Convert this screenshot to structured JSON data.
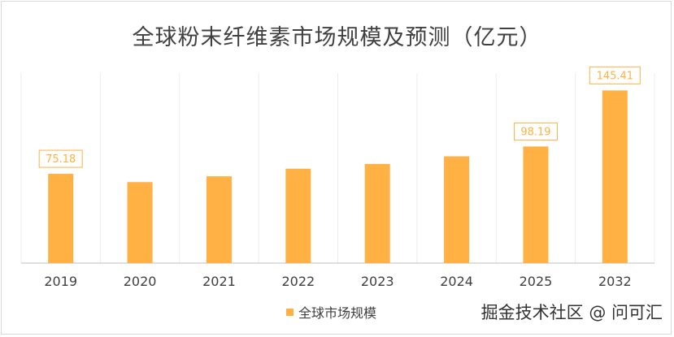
{
  "chart_data": {
    "type": "bar",
    "title": "全球粉末纤维素市场规模及预测（亿元）",
    "categories": [
      "2019",
      "2020",
      "2021",
      "2022",
      "2023",
      "2024",
      "2025",
      "2032"
    ],
    "series": [
      {
        "name": "全球市场规模",
        "values": [
          75.18,
          68.2,
          73.1,
          79.5,
          83.5,
          89.9,
          98.19,
          145.41
        ],
        "data_labels": [
          "75.18",
          "",
          "",
          "",
          "",
          "",
          "98.19",
          "145.41"
        ]
      }
    ],
    "ylim": [
      0,
      160
    ],
    "grid": "vertical",
    "legend": "bottom",
    "colors": {
      "bar": "#ffb144",
      "label_border": "#ffb144",
      "label_text": "#ffb144"
    }
  },
  "watermark": "掘金技术社区 @ 问可汇"
}
